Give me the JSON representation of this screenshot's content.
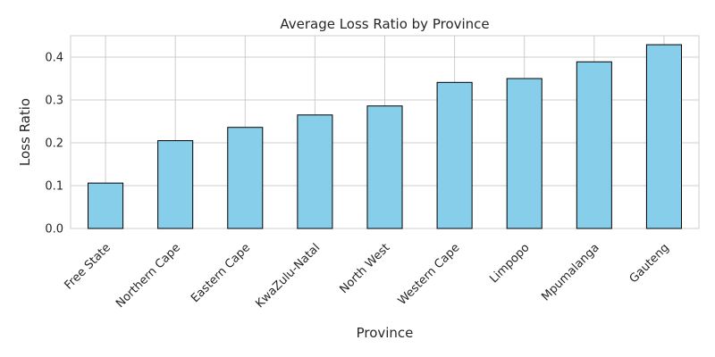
{
  "chart_data": {
    "type": "bar",
    "title": "Average Loss Ratio by Province",
    "xlabel": "Province",
    "ylabel": "Loss Ratio",
    "categories": [
      "Free State",
      "Northern Cape",
      "Eastern Cape",
      "KwaZulu-Natal",
      "North West",
      "Western Cape",
      "Limpopo",
      "Mpumalanga",
      "Gauteng"
    ],
    "values": [
      0.106,
      0.205,
      0.236,
      0.265,
      0.286,
      0.341,
      0.35,
      0.389,
      0.429
    ],
    "ylim": [
      0,
      0.45
    ],
    "yticks": [
      "0.0",
      "0.1",
      "0.2",
      "0.3",
      "0.4"
    ],
    "grid": true,
    "bar_color": "#87CEEB",
    "bar_edge_color": "#000000"
  }
}
